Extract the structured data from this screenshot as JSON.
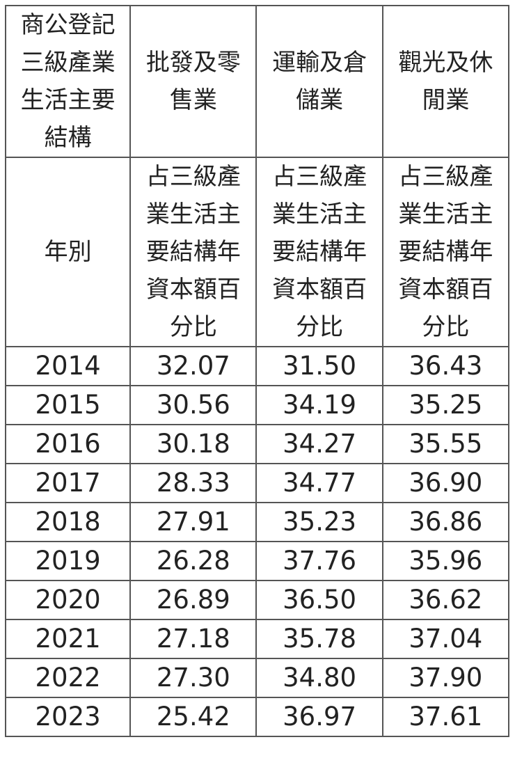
{
  "table": {
    "header_row1": {
      "first": "商公登記三級產業生活主要結構",
      "columns": [
        "批發及零售業",
        "運輸及倉儲業",
        "觀光及休閒業"
      ]
    },
    "header_row2": {
      "first": "年別",
      "metric": "占三級產業生活主要結構年資本額百分比"
    },
    "rows": [
      {
        "year": "2014",
        "values": [
          "32.07",
          "31.50",
          "36.43"
        ]
      },
      {
        "year": "2015",
        "values": [
          "30.56",
          "34.19",
          "35.25"
        ]
      },
      {
        "year": "2016",
        "values": [
          "30.18",
          "34.27",
          "35.55"
        ]
      },
      {
        "year": "2017",
        "values": [
          "28.33",
          "34.77",
          "36.90"
        ]
      },
      {
        "year": "2018",
        "values": [
          "27.91",
          "35.23",
          "36.86"
        ]
      },
      {
        "year": "2019",
        "values": [
          "26.28",
          "37.76",
          "35.96"
        ]
      },
      {
        "year": "2020",
        "values": [
          "26.89",
          "36.50",
          "36.62"
        ]
      },
      {
        "year": "2021",
        "values": [
          "27.18",
          "35.78",
          "37.04"
        ]
      },
      {
        "year": "2022",
        "values": [
          "27.30",
          "34.80",
          "37.90"
        ]
      },
      {
        "year": "2023",
        "values": [
          "25.42",
          "36.97",
          "37.61"
        ]
      }
    ]
  }
}
